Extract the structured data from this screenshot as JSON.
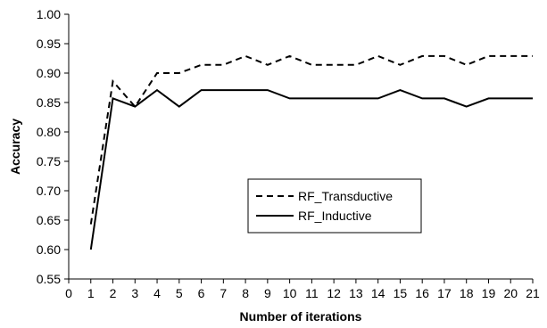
{
  "chart_data": {
    "type": "line",
    "title": "",
    "xlabel": "Number of iterations",
    "ylabel": "Accuracy",
    "xlim": [
      0,
      21
    ],
    "ylim": [
      0.55,
      1.0
    ],
    "x_ticks": [
      0,
      1,
      2,
      3,
      4,
      5,
      6,
      7,
      8,
      9,
      10,
      11,
      12,
      13,
      14,
      15,
      16,
      17,
      18,
      19,
      20,
      21
    ],
    "y_ticks": [
      "0.55",
      "0.60",
      "0.65",
      "0.70",
      "0.75",
      "0.80",
      "0.85",
      "0.90",
      "0.95",
      "1.00"
    ],
    "grid": false,
    "legend_position": "center-right",
    "x": [
      1,
      2,
      3,
      4,
      5,
      6,
      7,
      8,
      9,
      10,
      11,
      12,
      13,
      14,
      15,
      16,
      17,
      18,
      19,
      20,
      21
    ],
    "series": [
      {
        "name": "RF_Transductive",
        "style": "dashed",
        "color": "#000000",
        "values": [
          0.643,
          0.886,
          0.843,
          0.9,
          0.9,
          0.914,
          0.914,
          0.929,
          0.914,
          0.929,
          0.914,
          0.914,
          0.914,
          0.929,
          0.914,
          0.929,
          0.929,
          0.914,
          0.929,
          0.929,
          0.929
        ]
      },
      {
        "name": "RF_Inductive",
        "style": "solid",
        "color": "#000000",
        "values": [
          0.6,
          0.857,
          0.843,
          0.871,
          0.843,
          0.871,
          0.871,
          0.871,
          0.871,
          0.857,
          0.857,
          0.857,
          0.857,
          0.857,
          0.871,
          0.857,
          0.857,
          0.843,
          0.857,
          0.857,
          0.857
        ]
      }
    ]
  }
}
